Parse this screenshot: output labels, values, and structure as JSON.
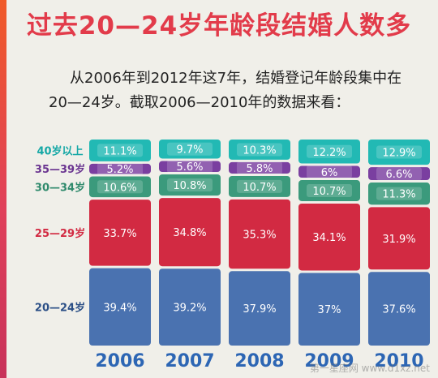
{
  "title": "过去20—24岁年龄段结婚人数多",
  "lead": {
    "line1": "从2006年到2012年这7年，结婚登记年龄段集中在",
    "line2": "20—24岁。截取2006—2010年的数据来看："
  },
  "chart_data": {
    "type": "bar",
    "stacked": true,
    "orientation": "vertical",
    "y_unit": "%",
    "categories": [
      "2006",
      "2007",
      "2008",
      "2009",
      "2010"
    ],
    "series": [
      {
        "name": "20—24岁",
        "color": "#4a72b0",
        "label_color": "#2b4f86",
        "values": [
          39.4,
          39.2,
          37.9,
          37,
          37.6
        ],
        "labels": [
          "39.4%",
          "39.2%",
          "37.9%",
          "37%",
          "37.6%"
        ]
      },
      {
        "name": "25—29岁",
        "color": "#d22a42",
        "label_color": "#d22a42",
        "values": [
          33.7,
          34.8,
          35.3,
          34.1,
          31.9
        ],
        "labels": [
          "33.7%",
          "34.8%",
          "35.3%",
          "34.1%",
          "31.9%"
        ]
      },
      {
        "name": "30—34岁",
        "color": "#3b9a7c",
        "label_color": "#2f8a6c",
        "values": [
          10.6,
          10.8,
          10.7,
          10.7,
          11.3
        ],
        "labels": [
          "10.6%",
          "10.8%",
          "10.7%",
          "10.7%",
          "11.3%"
        ]
      },
      {
        "name": "35—39岁",
        "color": "#7a3fa0",
        "label_color": "#6a3490",
        "values": [
          5.2,
          5.6,
          5.8,
          6,
          6.6
        ],
        "labels": [
          "5.2%",
          "5.6%",
          "5.8%",
          "6%",
          "6.6%"
        ]
      },
      {
        "name": "40岁以上",
        "color": "#22b9b4",
        "label_color": "#16a8a6",
        "values": [
          11.1,
          9.7,
          10.3,
          12.2,
          12.9
        ],
        "labels": [
          "11.1%",
          "9.7%",
          "10.3%",
          "12.2%",
          "12.9%"
        ]
      }
    ],
    "legend_placement": "left",
    "category_label_color": "#2d66b4",
    "grid": false
  },
  "watermark": "第一星座网 www.d1xz.net"
}
